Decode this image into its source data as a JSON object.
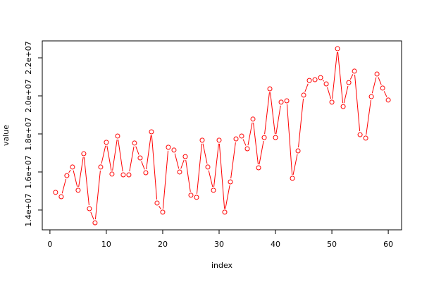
{
  "chart_data": {
    "type": "line",
    "x_label": "index",
    "y_label": "value",
    "x": [
      1,
      2,
      3,
      4,
      5,
      6,
      7,
      8,
      9,
      10,
      11,
      12,
      13,
      14,
      15,
      16,
      17,
      18,
      19,
      20,
      21,
      22,
      23,
      24,
      25,
      26,
      27,
      28,
      29,
      30,
      31,
      32,
      33,
      34,
      35,
      36,
      37,
      38,
      39,
      40,
      41,
      42,
      43,
      44,
      45,
      46,
      47,
      48,
      49,
      50,
      51,
      52,
      53,
      54,
      55,
      56,
      57,
      58,
      59,
      60
    ],
    "series": [
      {
        "color": "#ff0000",
        "values": [
          14930000,
          14700000,
          15810000,
          16260000,
          15040000,
          16960000,
          14070000,
          13330000,
          16260000,
          17560000,
          15890000,
          17890000,
          15850000,
          15850000,
          17520000,
          16740000,
          15960000,
          18110000,
          14370000,
          13890000,
          17300000,
          17150000,
          16000000,
          16810000,
          14780000,
          14670000,
          17670000,
          16260000,
          15040000,
          17670000,
          13890000,
          15480000,
          17740000,
          17890000,
          17220000,
          18780000,
          16220000,
          17810000,
          20370000,
          17810000,
          19670000,
          19740000,
          15670000,
          17110000,
          20040000,
          20810000,
          20850000,
          20960000,
          20630000,
          19670000,
          22480000,
          19440000,
          20700000,
          21300000,
          17960000,
          17780000,
          19960000,
          21150000,
          20410000,
          19780000
        ]
      }
    ],
    "marker": "open-circle",
    "xlim": [
      -1.36,
      62.36
    ],
    "xticks": [
      0,
      10,
      20,
      30,
      40,
      50,
      60
    ],
    "ylim": [
      12960000,
      22890000
    ],
    "yticks": [
      {
        "value": 14000000,
        "label": "1.4e+07"
      },
      {
        "value": 16000000,
        "label": "1.6e+07"
      },
      {
        "value": 18000000,
        "label": "1.8e+07"
      },
      {
        "value": 20000000,
        "label": "2.0e+07"
      },
      {
        "value": 22000000,
        "label": "2.2e+07"
      }
    ]
  }
}
